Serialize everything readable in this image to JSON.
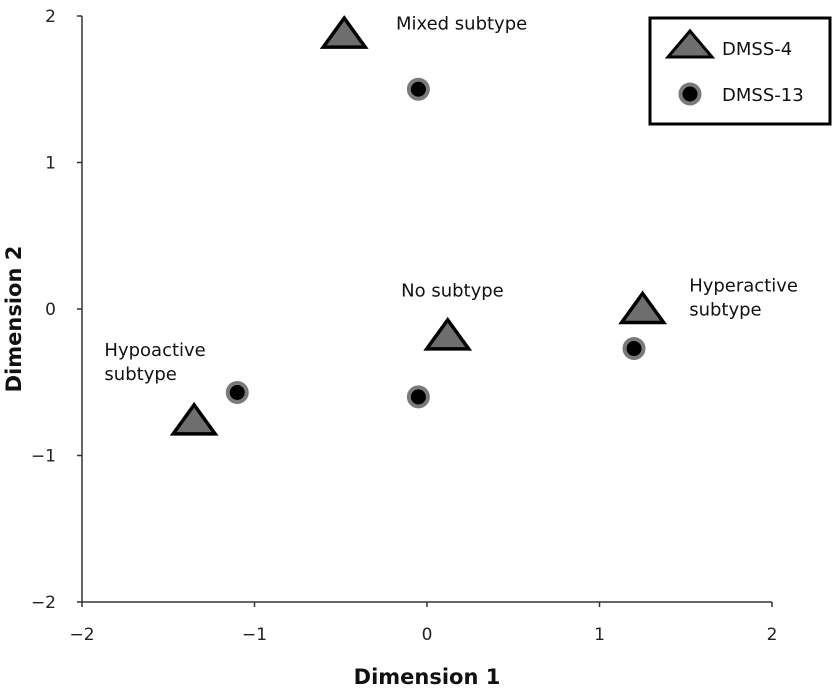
{
  "chart_data": {
    "type": "scatter",
    "xlabel": "Dimension 1",
    "ylabel": "Dimension 2",
    "xlim": [
      -2,
      2
    ],
    "ylim": [
      -2,
      2
    ],
    "xticks": [
      "−2",
      "−1",
      "0",
      "1",
      "2"
    ],
    "yticks": [
      "2",
      "1",
      "0",
      "−1",
      "−2"
    ],
    "grid": false,
    "legend_position": "top-right",
    "series": [
      {
        "name": "DMSS-4",
        "marker": "triangle",
        "color": "#6e6e6e",
        "points": [
          {
            "x": -0.48,
            "y": 1.88
          },
          {
            "x": 0.12,
            "y": -0.18
          },
          {
            "x": 1.25,
            "y": 0.0
          },
          {
            "x": -1.35,
            "y": -0.76
          }
        ]
      },
      {
        "name": "DMSS-13",
        "marker": "circle",
        "color": "#000000",
        "points": [
          {
            "x": -0.05,
            "y": 1.5
          },
          {
            "x": -0.05,
            "y": -0.6
          },
          {
            "x": 1.2,
            "y": -0.27
          },
          {
            "x": -1.1,
            "y": -0.57
          }
        ]
      }
    ],
    "annotations": [
      {
        "lines": [
          "Mixed subtype"
        ]
      },
      {
        "lines": [
          "No subtype"
        ]
      },
      {
        "lines": [
          "Hyperactive",
          "subtype"
        ]
      },
      {
        "lines": [
          "Hypoactive",
          "subtype"
        ]
      }
    ]
  }
}
